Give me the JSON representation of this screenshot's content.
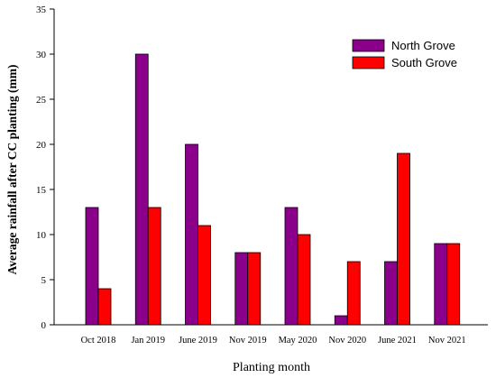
{
  "chart_data": {
    "type": "bar",
    "xlabel": "Planting month",
    "ylabel": "Average rainfall after CC planting (mm)",
    "ylim": [
      0,
      35
    ],
    "yticks": [
      0,
      5,
      10,
      15,
      20,
      25,
      30,
      35
    ],
    "grid": false,
    "legend_position": "top-right",
    "categories": [
      "Oct 2018",
      "Jan 2019",
      "June 2019",
      "Nov 2019",
      "May 2020",
      "Nov 2020",
      "June 2021",
      "Nov 2021"
    ],
    "series": [
      {
        "name": "North Grove",
        "color": "#8B008B",
        "values": [
          13,
          30,
          20,
          8,
          13,
          1,
          7,
          9
        ]
      },
      {
        "name": "South Grove",
        "color": "#FF0000",
        "values": [
          4,
          13,
          11,
          8,
          10,
          7,
          19,
          9
        ]
      }
    ]
  }
}
